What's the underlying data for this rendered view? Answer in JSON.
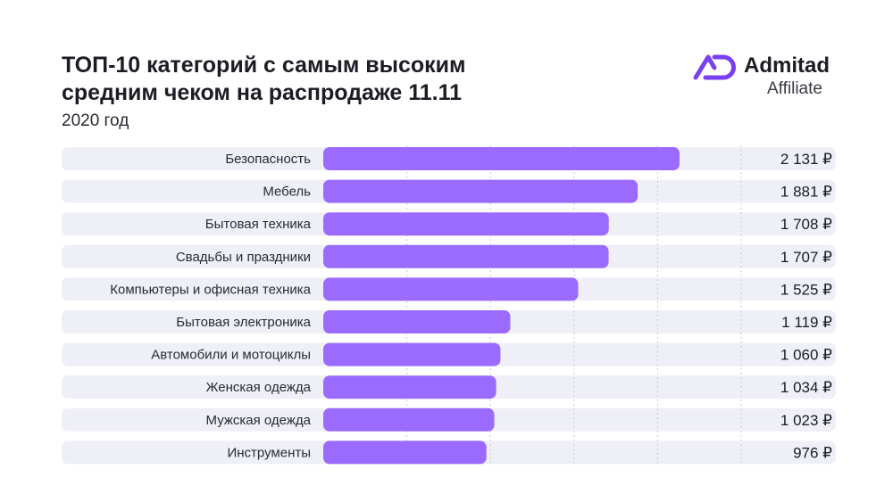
{
  "header": {
    "title_line1": "ТОП-10 категорий с самым высоким",
    "title_line2": "средним чеком на распродаже 11.11",
    "subtitle": "2020 год"
  },
  "brand": {
    "name": "Admitad",
    "sub": "Affiliate",
    "accent": "#7b3ff2"
  },
  "colors": {
    "bar": "#9b6bff",
    "row_bg": "#efeff7",
    "grid": "#c9c9d6"
  },
  "chart_data": {
    "type": "bar",
    "orientation": "horizontal",
    "title": "ТОП-10 категорий с самым высоким средним чеком на распродаже 11.11",
    "subtitle": "2020 год",
    "xlabel": "",
    "ylabel": "",
    "xlim": [
      0,
      2500
    ],
    "grid": true,
    "categories": [
      "Безопасность",
      "Мебель",
      "Бытовая техника",
      "Свадьбы и праздники",
      "Компьютеры и офисная техника",
      "Бытовая электроника",
      "Автомобили и мотоциклы",
      "Женская одежда",
      "Мужская одежда",
      "Инструменты"
    ],
    "values": [
      2131,
      1881,
      1708,
      1707,
      1525,
      1119,
      1060,
      1034,
      1023,
      976
    ],
    "value_labels": [
      "2 131 ₽",
      "1 881 ₽",
      "1 708 ₽",
      "1 707 ₽",
      "1 525 ₽",
      "1 119 ₽",
      "1 060 ₽",
      "1 034 ₽",
      "1 023 ₽",
      "976 ₽"
    ]
  }
}
